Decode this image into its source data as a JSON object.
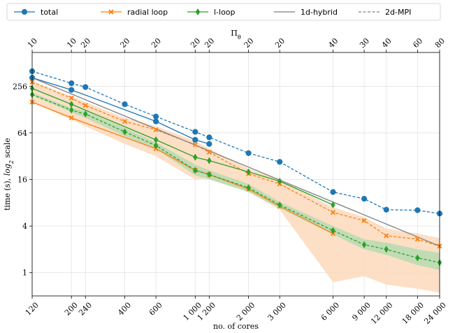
{
  "chart_data": {
    "type": "line",
    "xscale": "log",
    "yscale": "log2",
    "xlabel": "no. of cores",
    "ylabel": "time (s), log₂ scale",
    "ylabel_main": "time (s), ",
    "ylabel_log": "log",
    "ylabel_sub": "2",
    "ylabel_tail": " scale",
    "top_axis_label": "Πθ",
    "top_axis_label_main": "Π",
    "top_axis_label_sub": "θ",
    "xlim": [
      120,
      24000
    ],
    "ylim": [
      0.5,
      700
    ],
    "x_ticks": [
      120,
      200,
      240,
      400,
      600,
      1000,
      1200,
      2000,
      3000,
      6000,
      9000,
      12000,
      18000,
      24000
    ],
    "x_tick_labels": [
      "120",
      "200",
      "240",
      "400",
      "600",
      "1 000",
      "1 200",
      "2 000",
      "3 000",
      "6 000",
      "9 000",
      "12 000",
      "18 000",
      "24 000"
    ],
    "y_ticks": [
      1,
      4,
      16,
      64,
      256
    ],
    "y_tick_labels": [
      "1",
      "4",
      "16",
      "64",
      "256"
    ],
    "top_ticks": [
      120,
      200,
      240,
      400,
      600,
      1000,
      1200,
      2000,
      3000,
      6000,
      9000,
      12000,
      18000,
      24000
    ],
    "top_tick_labels": [
      "10",
      "10",
      "20",
      "20",
      "20",
      "20",
      "20",
      "20",
      "20",
      "40",
      "30",
      "40",
      "60",
      "80"
    ],
    "grid": true,
    "legend_position": "top",
    "colors": {
      "total": "#1f77b4",
      "radial": "#ff7f0e",
      "lloop": "#2ca02c",
      "hybrid": "#7f7f7f",
      "band_radial": "#fdd9bb",
      "band_lloop": "#b6dcb2"
    },
    "legend": [
      {
        "label": "total",
        "color": "#1f77b4",
        "marker": "circle",
        "dash": "solid"
      },
      {
        "label": "radial loop",
        "color": "#ff7f0e",
        "marker": "x",
        "dash": "solid"
      },
      {
        "label": "l-loop",
        "color": "#2ca02c",
        "marker": "diamond",
        "dash": "solid"
      },
      {
        "label": "1d-hybrid",
        "color": "#7f7f7f",
        "marker": "none",
        "dash": "solid"
      },
      {
        "label": "2d-MPI",
        "color": "#7f7f7f",
        "marker": "none",
        "dash": "dashed"
      }
    ],
    "series": [
      {
        "id": "total_1d",
        "series": "total",
        "variant": "1d-hybrid",
        "color": "#1f77b4",
        "marker": "circle",
        "dash": "solid",
        "x": [
          120,
          200,
          600,
          1000,
          1200
        ],
        "y": [
          330,
          230,
          90,
          52,
          46
        ]
      },
      {
        "id": "total_2d",
        "series": "total",
        "variant": "2d-MPI",
        "color": "#1f77b4",
        "marker": "circle",
        "dash": "dashed",
        "x": [
          120,
          200,
          240,
          400,
          600,
          1000,
          1200,
          2000,
          3000,
          6000,
          9000,
          12000,
          18000,
          24000
        ],
        "y": [
          400,
          280,
          250,
          150,
          104,
          66,
          56,
          35,
          27,
          11,
          9,
          6.5,
          6.4,
          5.8
        ]
      },
      {
        "id": "radial_1d",
        "series": "radial loop",
        "variant": "1d-hybrid",
        "color": "#ff7f0e",
        "marker": "x",
        "dash": "solid",
        "x": [
          120,
          200,
          600,
          1000,
          1200,
          2000,
          3000,
          6000
        ],
        "y": [
          160,
          100,
          40,
          21,
          18.5,
          12,
          7.2,
          3.2
        ]
      },
      {
        "id": "radial_2d",
        "series": "radial loop",
        "variant": "2d-MPI",
        "color": "#ff7f0e",
        "marker": "x",
        "dash": "dashed",
        "x": [
          120,
          200,
          240,
          400,
          600,
          1000,
          1200,
          2000,
          3000,
          6000,
          9000,
          12000,
          18000,
          24000
        ],
        "y": [
          290,
          180,
          145,
          90,
          70,
          45,
          36,
          19,
          14,
          6,
          4.7,
          3,
          2.7,
          2.2
        ]
      },
      {
        "id": "lloop_1d",
        "series": "l-loop",
        "variant": "1d-hybrid",
        "color": "#2ca02c",
        "marker": "diamond",
        "dash": "solid",
        "x": [
          120,
          200,
          600,
          1000,
          1200,
          2000,
          3000,
          6000
        ],
        "y": [
          240,
          150,
          52,
          31,
          28,
          20,
          15.2,
          7.5
        ]
      },
      {
        "id": "lloop_2d",
        "series": "l-loop",
        "variant": "2d-MPI",
        "color": "#2ca02c",
        "marker": "diamond",
        "dash": "dashed",
        "x": [
          120,
          200,
          240,
          400,
          600,
          1000,
          1200,
          2000,
          3000,
          6000,
          9000,
          12000,
          18000,
          24000
        ],
        "y": [
          200,
          126,
          112,
          66,
          44,
          21,
          18.5,
          12.5,
          7.5,
          3.5,
          2.3,
          2,
          1.55,
          1.35
        ]
      },
      {
        "id": "hybrid_model",
        "series": "1d-hybrid",
        "variant": "model",
        "color": "#7f7f7f",
        "marker": "none",
        "dash": "solid",
        "x": [
          120,
          24000
        ],
        "y": [
          330,
          2.2
        ]
      }
    ],
    "bands": [
      {
        "id": "radial_band",
        "series": "radial loop",
        "color": "#fdd9bb",
        "x": [
          120,
          200,
          240,
          400,
          600,
          1000,
          1200,
          2000,
          3000,
          6000,
          9000,
          12000,
          18000,
          24000
        ],
        "lower": [
          160,
          95,
          78,
          46,
          32,
          16,
          16.5,
          11,
          6.5,
          0.75,
          0.9,
          0.7,
          0.62,
          0.55
        ],
        "upper": [
          295,
          190,
          160,
          100,
          78,
          50,
          40,
          22,
          16,
          7,
          5.2,
          3.7,
          3.2,
          2.8
        ]
      },
      {
        "id": "lloop_band",
        "series": "l-loop",
        "color": "#b6dcb2",
        "x": [
          120,
          200,
          240,
          400,
          600,
          1000,
          1200,
          2000,
          3000,
          6000,
          9000,
          12000,
          18000,
          24000
        ],
        "lower": [
          195,
          118,
          100,
          58,
          40,
          18,
          16,
          11,
          6.8,
          3.1,
          2,
          1.7,
          1.25,
          1.08
        ],
        "upper": [
          210,
          135,
          122,
          74,
          48,
          25,
          21,
          14,
          8.2,
          4,
          2.7,
          2.45,
          2,
          1.8
        ]
      }
    ]
  }
}
